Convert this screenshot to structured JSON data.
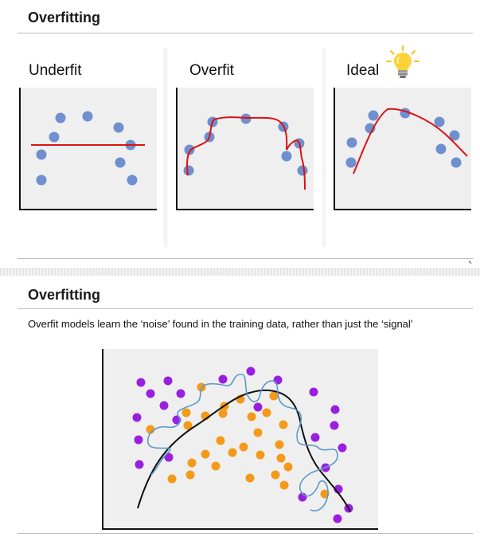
{
  "slide1": {
    "title": "Overfitting",
    "panels": [
      {
        "label": "Underfit"
      },
      {
        "label": "Overfit"
      },
      {
        "label": "Ideal"
      }
    ],
    "lightbulb_icon": "lightbulb-icon",
    "corner_mark": "⬉"
  },
  "slide2": {
    "title": "Overfitting",
    "description": "Overfit models learn the ‘noise’ found in the training data, rather than just the ‘signal’"
  },
  "colors": {
    "dot_blue": "#6f8fcf",
    "fit_red": "#dd1111",
    "class_purple": "#9a1ee0",
    "class_orange": "#f39a1a",
    "boundary_black": "#111111",
    "boundary_blue": "#5b9bc9"
  }
}
